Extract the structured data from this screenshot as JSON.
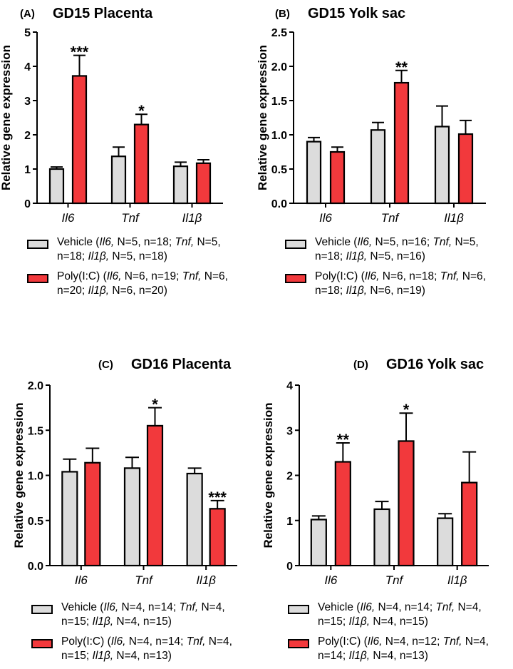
{
  "chart_data": [
    {
      "type": "bar",
      "panel": "(A)",
      "title": "GD15 Placenta",
      "ylabel": "Relative gene expression",
      "ylim": [
        0,
        5
      ],
      "yticks": [
        "0",
        "1",
        "2",
        "3",
        "4",
        "5"
      ],
      "categories": [
        "Il6",
        "Tnf",
        "Il1β"
      ],
      "series": [
        {
          "name": "Vehicle",
          "values": [
            1.0,
            1.37,
            1.08
          ],
          "errors": [
            0.06,
            0.27,
            0.12
          ]
        },
        {
          "name": "Poly(I:C)",
          "values": [
            3.72,
            2.3,
            1.17
          ],
          "errors": [
            0.6,
            0.3,
            0.1
          ]
        }
      ],
      "significance": [
        {
          "category": 0,
          "series": 1,
          "label": "***"
        },
        {
          "category": 1,
          "series": 1,
          "label": "*"
        }
      ],
      "legend": [
        {
          "series": "Vehicle",
          "line1": [
            "Vehicle (",
            "Il6,",
            " N=5, n=18; ",
            "Tnf,",
            " N=5,"
          ],
          "line2": [
            "n=18; ",
            "Il1β,",
            " N=5, n=18)"
          ]
        },
        {
          "series": "Poly(I:C)",
          "line1": [
            "Poly(I:C) (",
            "Il6,",
            " N=6, n=19; ",
            "Tnf,",
            " N=6,"
          ],
          "line2": [
            "n=20; ",
            "Il1β,",
            " N=6, n=20)"
          ]
        }
      ]
    },
    {
      "type": "bar",
      "panel": "(B)",
      "title": "GD15 Yolk sac",
      "ylabel": "Relative gene expression",
      "ylim": [
        0,
        2.5
      ],
      "yticks": [
        "0.0",
        "0.5",
        "1.0",
        "1.5",
        "2.0",
        "2.5"
      ],
      "categories": [
        "Il6",
        "Tnf",
        "Il1β"
      ],
      "series": [
        {
          "name": "Vehicle",
          "values": [
            0.9,
            1.07,
            1.12
          ],
          "errors": [
            0.06,
            0.11,
            0.3
          ]
        },
        {
          "name": "Poly(I:C)",
          "values": [
            0.75,
            1.76,
            1.01
          ],
          "errors": [
            0.07,
            0.18,
            0.2
          ]
        }
      ],
      "significance": [
        {
          "category": 1,
          "series": 1,
          "label": "**"
        }
      ],
      "legend": [
        {
          "series": "Vehicle",
          "line1": [
            "Vehicle (",
            "Il6,",
            " N=5, n=16; ",
            "Tnf,",
            " N=5,"
          ],
          "line2": [
            "n=18; ",
            "Il1β,",
            " N=5, n=16)"
          ]
        },
        {
          "series": "Poly(I:C)",
          "line1": [
            "Poly(I:C) (",
            "Il6,",
            " N=6, n=18; ",
            "Tnf,",
            " N=6,"
          ],
          "line2": [
            "n=18; ",
            "Il1β,",
            " N=6, n=19)"
          ]
        }
      ]
    },
    {
      "type": "bar",
      "panel": "(C)",
      "title": "GD16 Placenta",
      "ylabel": "Relative gene expression",
      "ylim": [
        0,
        2
      ],
      "yticks": [
        "0.0",
        "0.5",
        "1.0",
        "1.5",
        "2.0"
      ],
      "categories": [
        "Il6",
        "Tnf",
        "Il1β"
      ],
      "series": [
        {
          "name": "Vehicle",
          "values": [
            1.04,
            1.08,
            1.02
          ],
          "errors": [
            0.14,
            0.12,
            0.06
          ]
        },
        {
          "name": "Poly(I:C)",
          "values": [
            1.14,
            1.55,
            0.63
          ],
          "errors": [
            0.16,
            0.2,
            0.09
          ]
        }
      ],
      "significance": [
        {
          "category": 1,
          "series": 1,
          "label": "*"
        },
        {
          "category": 2,
          "series": 1,
          "label": "***"
        }
      ],
      "legend": [
        {
          "series": "Vehicle",
          "line1": [
            "Vehicle (",
            "Il6,",
            " N=4, n=14; ",
            "Tnf,",
            " N=4,"
          ],
          "line2": [
            "n=15; ",
            "Il1β,",
            " N=4, n=15)"
          ]
        },
        {
          "series": "Poly(I:C)",
          "line1": [
            "Poly(I:C) (",
            "Il6,",
            " N=4, n=14; ",
            "Tnf,",
            " N=4,"
          ],
          "line2": [
            "n=15; ",
            "Il1β,",
            " N=4, n=13)"
          ]
        }
      ]
    },
    {
      "type": "bar",
      "panel": "(D)",
      "title": "GD16 Yolk sac",
      "ylabel": "Relative gene expression",
      "ylim": [
        0,
        4
      ],
      "yticks": [
        "0",
        "1",
        "2",
        "3",
        "4"
      ],
      "categories": [
        "Il6",
        "Tnf",
        "Il1β"
      ],
      "series": [
        {
          "name": "Vehicle",
          "values": [
            1.02,
            1.25,
            1.05
          ],
          "errors": [
            0.08,
            0.17,
            0.1
          ]
        },
        {
          "name": "Poly(I:C)",
          "values": [
            2.3,
            2.76,
            1.84
          ],
          "errors": [
            0.42,
            0.62,
            0.68
          ]
        }
      ],
      "significance": [
        {
          "category": 0,
          "series": 1,
          "label": "**"
        },
        {
          "category": 1,
          "series": 1,
          "label": "*"
        }
      ],
      "legend": [
        {
          "series": "Vehicle",
          "line1": [
            "Vehicle (",
            "Il6,",
            " N=4, n=14; ",
            "Tnf,",
            " N=4,"
          ],
          "line2": [
            "n=15; ",
            "Il1β,",
            " N=4, n=15)"
          ]
        },
        {
          "series": "Poly(I:C)",
          "line1": [
            "Poly(I:C) (",
            "Il6,",
            " N=4, n=12; ",
            "Tnf,",
            " N=4,"
          ],
          "line2": [
            "n=14; ",
            "Il1β,",
            " N=4, n=13)"
          ]
        }
      ]
    }
  ],
  "colors": {
    "vehicle": "#dcdcdc",
    "polyic": "#f2393c",
    "axis": "#000000"
  }
}
